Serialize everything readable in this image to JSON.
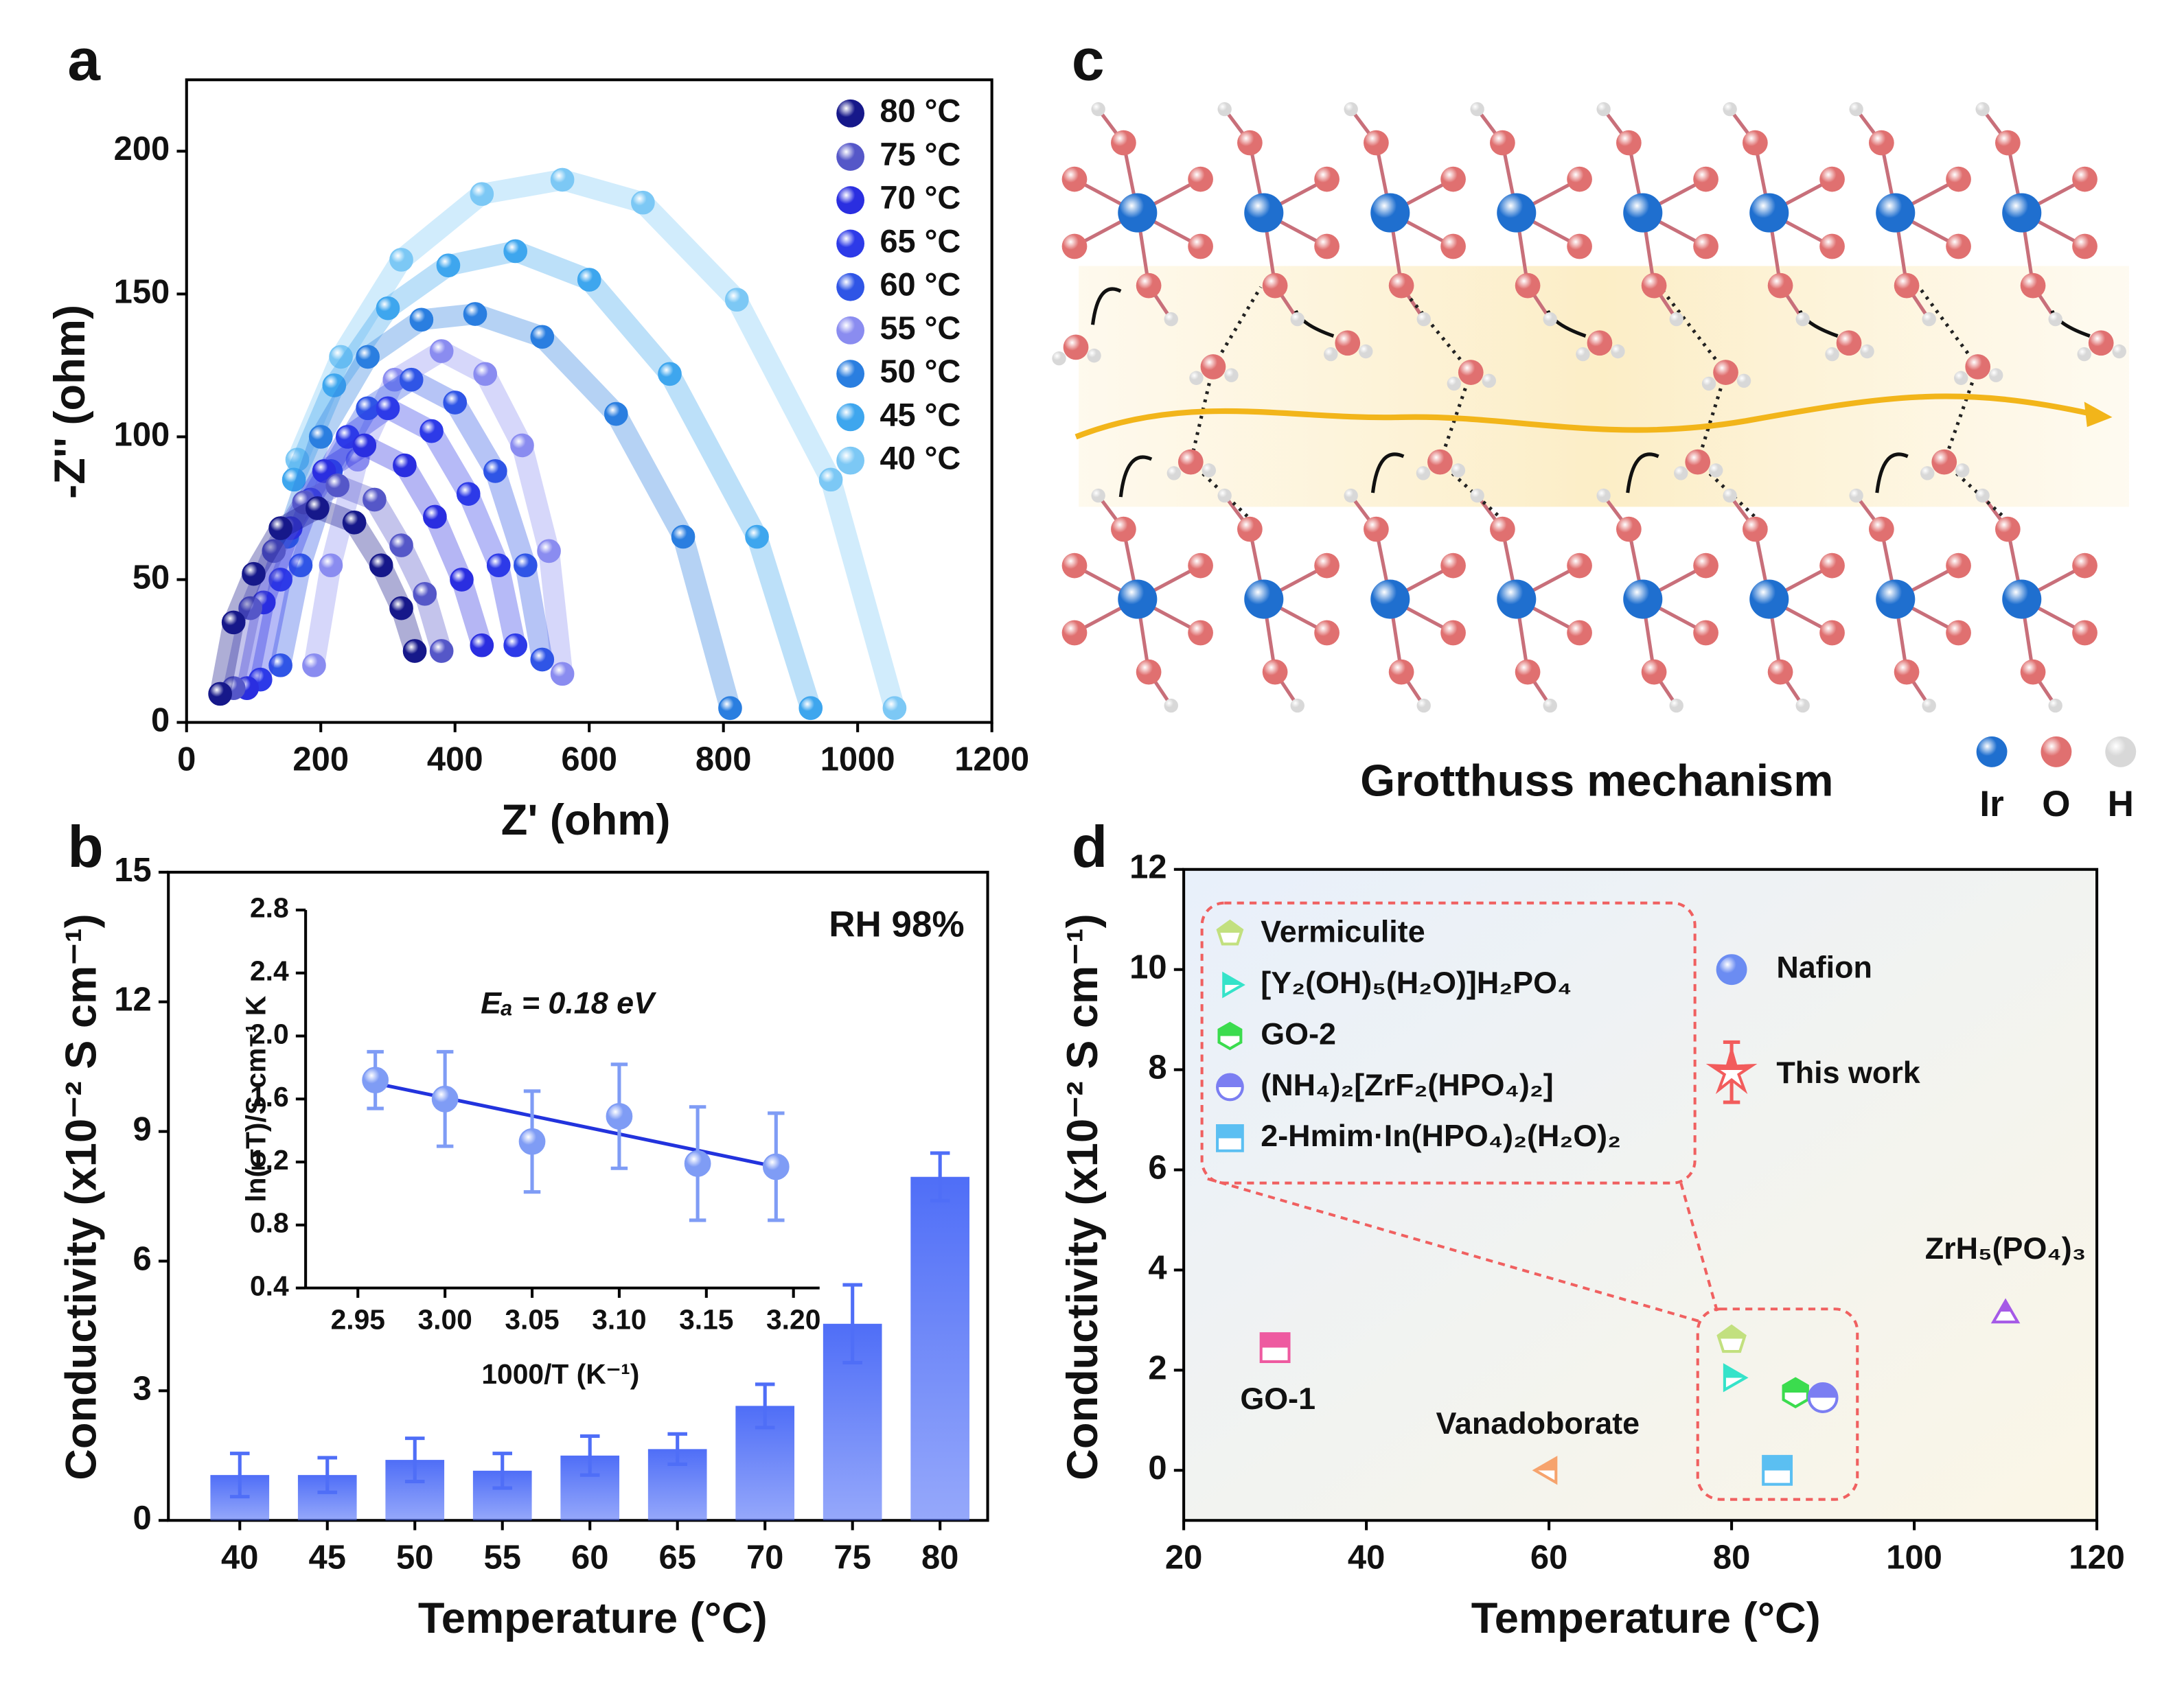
{
  "chart_data": [
    {
      "type": "scatter",
      "label": "a",
      "x_label": "Z' (ohm)",
      "y_label": "-Z'' (ohm)",
      "xlim": [
        0,
        1200
      ],
      "xticks": [
        0,
        200,
        400,
        600,
        800,
        1000,
        1200
      ],
      "ylim": [
        0,
        225
      ],
      "yticks": [
        0,
        50,
        100,
        150,
        200
      ],
      "series": [
        {
          "name": "80 °C",
          "color": "#16188a",
          "x": [
            50,
            70,
            100,
            140,
            195,
            250,
            290,
            320,
            340
          ],
          "y": [
            10,
            35,
            52,
            68,
            75,
            70,
            55,
            40,
            25
          ]
        },
        {
          "name": "75 °C",
          "color": "#5557c8",
          "x": [
            70,
            95,
            130,
            175,
            225,
            280,
            320,
            355,
            380
          ],
          "y": [
            12,
            40,
            60,
            77,
            83,
            78,
            62,
            45,
            25
          ]
        },
        {
          "name": "70 °C",
          "color": "#2a2ee0",
          "x": [
            90,
            115,
            155,
            205,
            265,
            325,
            370,
            410,
            440
          ],
          "y": [
            12,
            42,
            68,
            88,
            97,
            90,
            72,
            50,
            27
          ]
        },
        {
          "name": "65 °C",
          "color": "#2d3ae8",
          "x": [
            110,
            140,
            185,
            240,
            300,
            365,
            420,
            465,
            490
          ],
          "y": [
            15,
            50,
            78,
            100,
            110,
            102,
            80,
            55,
            27
          ]
        },
        {
          "name": "60 °C",
          "color": "#2f55e6",
          "x": [
            140,
            170,
            215,
            270,
            335,
            400,
            460,
            505,
            530
          ],
          "y": [
            20,
            55,
            88,
            110,
            120,
            112,
            88,
            55,
            22
          ]
        },
        {
          "name": "55 °C",
          "color": "#8a8cf0",
          "x": [
            190,
            215,
            255,
            310,
            380,
            445,
            500,
            540,
            560
          ],
          "y": [
            20,
            55,
            92,
            120,
            130,
            122,
            97,
            60,
            17
          ]
        },
        {
          "name": "50 °C",
          "color": "#2a7ee0",
          "x": [
            150,
            200,
            270,
            350,
            430,
            530,
            640,
            740,
            810
          ],
          "y": [
            65,
            100,
            128,
            141,
            143,
            135,
            108,
            65,
            5
          ]
        },
        {
          "name": "45 °C",
          "color": "#3ea6ee",
          "x": [
            160,
            220,
            300,
            390,
            490,
            600,
            720,
            850,
            930
          ],
          "y": [
            85,
            118,
            145,
            160,
            165,
            155,
            122,
            65,
            5
          ]
        },
        {
          "name": "40 °C",
          "color": "#7cc8f5",
          "x": [
            165,
            230,
            320,
            440,
            560,
            680,
            820,
            960,
            1055
          ],
          "y": [
            92,
            128,
            162,
            185,
            190,
            182,
            148,
            85,
            5
          ]
        }
      ]
    },
    {
      "type": "bar",
      "label": "b",
      "x_label": "Temperature (°C)",
      "y_label": "Conductivity (x10⁻² S cm⁻¹)",
      "annotation": "RH 98%",
      "categories": [
        "40",
        "45",
        "50",
        "55",
        "60",
        "65",
        "70",
        "75",
        "80"
      ],
      "values": [
        1.05,
        1.05,
        1.4,
        1.15,
        1.5,
        1.65,
        2.65,
        4.55,
        7.95
      ],
      "errors": [
        0.5,
        0.4,
        0.5,
        0.4,
        0.45,
        0.35,
        0.5,
        0.9,
        0.55
      ],
      "color": "#4f6ef7",
      "ylim": [
        0,
        15
      ],
      "yticks": [
        0,
        3,
        6,
        9,
        12,
        15
      ]
    },
    {
      "type": "scatter",
      "x_label": "1000/T (K⁻¹)",
      "y_label": "ln(σT)/S cm⁻¹ K",
      "annotation": "Eₐ = 0.18 eV",
      "x": [
        2.96,
        3.0,
        3.05,
        3.1,
        3.145,
        3.19
      ],
      "y": [
        1.72,
        1.6,
        1.33,
        1.49,
        1.19,
        1.17
      ],
      "errors": [
        0.18,
        0.3,
        0.32,
        0.33,
        0.36,
        0.34
      ],
      "color": "#7f9cf5",
      "fit": {
        "x": [
          2.96,
          3.19
        ],
        "y": [
          1.7,
          1.17
        ],
        "color": "#2233dd"
      },
      "xlim": [
        2.92,
        3.215
      ],
      "xticks": [
        2.95,
        {
          "value": 3.0,
          "label": "3.00"
        },
        3.05,
        {
          "value": 3.1,
          "label": "3.10"
        },
        3.15,
        {
          "value": 3.2,
          "label": "3.20"
        }
      ],
      "ylim": [
        0.4,
        2.8
      ],
      "yticks": [
        0.4,
        0.8,
        1.2,
        1.6,
        {
          "value": 2.0,
          "label": "2.0"
        },
        2.4,
        2.8
      ]
    },
    {
      "type": "scatter",
      "label": "d",
      "x_label": "Temperature (°C)",
      "y_label": "Conductivity (x10⁻² S cm⁻¹)",
      "xlim": [
        20,
        120
      ],
      "xticks": [
        20,
        40,
        60,
        80,
        100,
        120
      ],
      "ylim": [
        -1,
        12
      ],
      "yticks": [
        0,
        2,
        4,
        6,
        8,
        10,
        12
      ],
      "series": [
        {
          "name": "Vermiculite",
          "color": "#c2e07f",
          "marker": "pentagon",
          "x": [
            80
          ],
          "y": [
            2.6
          ]
        },
        {
          "name": "[Y₂(OH)₅(H₂O)]H₂PO₄",
          "color": "#35e3c9",
          "marker": "triangle-right",
          "x": [
            80
          ],
          "y": [
            1.85
          ]
        },
        {
          "name": "GO-2",
          "color": "#3bdc4e",
          "marker": "hexagon",
          "x": [
            87
          ],
          "y": [
            1.55
          ]
        },
        {
          "name": "(NH₄)₂[ZrF₂(HPO₄)₂]",
          "color": "#7b7ef2",
          "marker": "circle",
          "x": [
            90
          ],
          "y": [
            1.45
          ]
        },
        {
          "name": "2-Hmim·In(HPO₄)₂(H₂O)₂",
          "color": "#5bbff2",
          "marker": "square",
          "x": [
            85
          ],
          "y": [
            0
          ]
        },
        {
          "name": "Nafion",
          "color": "#6b8cf2",
          "marker": "sphere",
          "x": [
            80
          ],
          "y": [
            10
          ]
        },
        {
          "name": "This work",
          "color": "#f25c5c",
          "marker": "star",
          "x": [
            80
          ],
          "y": [
            7.95
          ],
          "errors": [
            0.6
          ]
        },
        {
          "name": "GO-1",
          "color": "#ee5aa0",
          "marker": "square",
          "x": [
            30
          ],
          "y": [
            2.45
          ]
        },
        {
          "name": "Vanadoborate",
          "color": "#f6a36d",
          "marker": "triangle-left",
          "x": [
            60
          ],
          "y": [
            0
          ]
        },
        {
          "name": "ZrH₅(PO₄)₃",
          "color": "#a55ae6",
          "marker": "triangle-up",
          "x": [
            110
          ],
          "y": [
            3.1
          ]
        }
      ]
    }
  ],
  "diagram": {
    "label": "c",
    "caption": "Grotthuss mechanism",
    "legend": [
      {
        "name": "Ir",
        "color": "#1f6fcf"
      },
      {
        "name": "O",
        "color": "#e07070"
      },
      {
        "name": "H",
        "color": "#d8d8d8"
      }
    ]
  }
}
